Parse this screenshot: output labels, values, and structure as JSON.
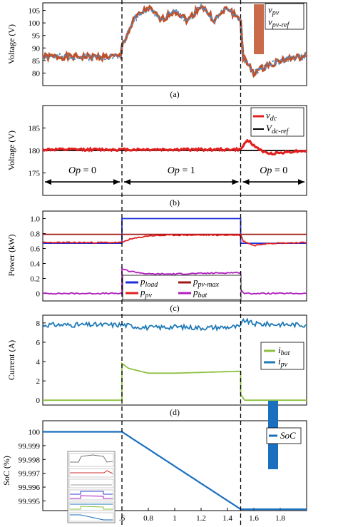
{
  "figure": {
    "shared_x_range": [
      1.3,
      2.0
    ],
    "vertical_markers_x": [
      0.6,
      1.5
    ]
  },
  "chart_data": [
    {
      "id": "a",
      "type": "line",
      "caption": "(a)",
      "ylabel": "Voltage (V)",
      "ylim": [
        75,
        108
      ],
      "yticks": [
        80,
        85,
        90,
        95,
        100,
        105
      ],
      "legend": [
        "v_pv",
        "v_pv-ref"
      ],
      "legend_text": {
        "v": "v",
        "pv": "pv",
        "pvref": "pv-ref"
      },
      "series": [
        {
          "name": "v_pv-ref",
          "color": "#c0502a",
          "x": [
            0.0,
            0.59,
            0.6,
            0.7,
            0.8,
            0.9,
            1.0,
            1.1,
            1.2,
            1.3,
            1.4,
            1.5,
            1.52,
            1.6,
            1.7,
            1.8,
            1.9,
            2.0
          ],
          "values": [
            86.5,
            86.5,
            91,
            102,
            106,
            101,
            105,
            101,
            107,
            101,
            106,
            101,
            86,
            80,
            83,
            85,
            86,
            86.5
          ]
        },
        {
          "name": "v_pv",
          "color": "#4a90c8",
          "x": [
            0.0,
            0.59,
            0.6,
            0.7,
            0.8,
            0.9,
            1.0,
            1.1,
            1.2,
            1.3,
            1.4,
            1.5,
            1.52,
            1.6,
            1.7,
            1.8,
            1.9,
            2.0
          ],
          "values": [
            86.5,
            86.5,
            91,
            102,
            106,
            101,
            105,
            101,
            107,
            101,
            106,
            101,
            86,
            80,
            83,
            85,
            86,
            86.5
          ]
        }
      ]
    },
    {
      "id": "b",
      "type": "line",
      "caption": "(b)",
      "ylabel": "Voltage (V)",
      "ylim": [
        170,
        190
      ],
      "yticks": [
        175,
        180,
        185
      ],
      "legend": [
        "v_dc",
        "V_dc-ref"
      ],
      "legend_text": {
        "v": "v",
        "V": "V",
        "dc": "dc",
        "dcref": "dc-ref"
      },
      "annotations": [
        {
          "text_pre": "Op",
          "text_post": " = 0",
          "x_from": 0.0,
          "x_to": 0.6
        },
        {
          "text_pre": "Op",
          "text_post": " = 1",
          "x_from": 0.6,
          "x_to": 1.5
        },
        {
          "text_pre": "Op",
          "text_post": " = 0",
          "x_from": 1.5,
          "x_to": 2.0
        }
      ],
      "series": [
        {
          "name": "V_dc-ref",
          "color": "#000000",
          "x": [
            0.0,
            2.0
          ],
          "values": [
            180,
            180
          ]
        },
        {
          "name": "v_dc",
          "color": "#e02020",
          "x": [
            0.0,
            1.5,
            1.52,
            1.55,
            1.6,
            1.7,
            1.8,
            1.9,
            2.0
          ],
          "values": [
            180.2,
            180.2,
            181,
            182.5,
            181,
            179.3,
            179.5,
            179.8,
            180
          ]
        }
      ]
    },
    {
      "id": "c",
      "type": "line",
      "caption": "(c)",
      "ylabel": "Power (kW)",
      "ylim": [
        -0.1,
        1.1
      ],
      "yticks": [
        0,
        0.2,
        0.4,
        0.6,
        0.8,
        1.0
      ],
      "ytick_labels": [
        "0",
        "0.2",
        "0.4",
        "0.6",
        "0.8",
        "1.0"
      ],
      "legend": [
        "p_load",
        "p_pv-max",
        "p_pv",
        "p_bat"
      ],
      "legend_text": {
        "p": "p",
        "load": "load",
        "pvmax": "pv-max",
        "pv": "pv",
        "bat": "bat"
      },
      "series": [
        {
          "name": "p_load",
          "color": "#1f2ed8",
          "x": [
            0.0,
            0.6,
            0.6,
            1.5,
            1.5,
            2.0
          ],
          "values": [
            0.67,
            0.67,
            1.0,
            1.0,
            0.67,
            0.67
          ]
        },
        {
          "name": "p_pv-max",
          "color": "#a01818",
          "x": [
            0.0,
            2.0
          ],
          "values": [
            0.79,
            0.79
          ]
        },
        {
          "name": "p_pv",
          "color": "#e02020",
          "x": [
            0.0,
            0.6,
            0.65,
            0.8,
            1.0,
            1.5,
            1.52,
            1.6,
            1.7,
            2.0
          ],
          "values": [
            0.68,
            0.68,
            0.72,
            0.77,
            0.78,
            0.78,
            0.7,
            0.64,
            0.67,
            0.68
          ]
        },
        {
          "name": "p_bat",
          "color": "#b020c0",
          "x": [
            0.0,
            0.6,
            0.6,
            0.65,
            0.8,
            1.0,
            1.5,
            1.5,
            1.53,
            2.0
          ],
          "values": [
            0.0,
            0.0,
            0.33,
            0.3,
            0.26,
            0.26,
            0.28,
            0.05,
            0.0,
            0.0
          ]
        }
      ]
    },
    {
      "id": "d",
      "type": "line",
      "caption": "(d)",
      "ylabel": "Current (A)",
      "ylim": [
        -0.5,
        8.8
      ],
      "yticks": [
        0,
        2,
        4,
        6,
        8
      ],
      "legend": [
        "i_bat",
        "i_pv"
      ],
      "legend_text": {
        "i": "i",
        "bat": "bat",
        "pv": "pv"
      },
      "series": [
        {
          "name": "i_pv",
          "color": "#1f7ab8",
          "x": [
            0.0,
            0.6,
            0.8,
            1.0,
            1.2,
            1.5,
            1.52,
            1.6,
            2.0
          ],
          "values": [
            7.8,
            7.8,
            7.5,
            7.6,
            7.5,
            7.6,
            8.3,
            7.9,
            7.8
          ]
        },
        {
          "name": "i_bat",
          "color": "#8dc040",
          "x": [
            0.0,
            0.6,
            0.6,
            0.65,
            0.8,
            1.0,
            1.5,
            1.5,
            1.53,
            2.0
          ],
          "values": [
            0.0,
            0.0,
            3.8,
            3.3,
            2.8,
            2.8,
            3.0,
            0.6,
            0.0,
            0.0
          ]
        }
      ]
    },
    {
      "id": "e",
      "type": "line",
      "ylabel": "SoC (%)",
      "ylim": [
        99.9943,
        100.0008
      ],
      "yticks": [
        99.995,
        99.996,
        99.997,
        99.998,
        99.999,
        100
      ],
      "ytick_labels": [
        "99.995",
        "99.996",
        "99.997",
        "99.998",
        "99.999",
        "100"
      ],
      "xticks": [
        0.6,
        0.8,
        1.0,
        1.2,
        1.4,
        1.6,
        1.8
      ],
      "xtick_labels": [
        ".6",
        "0.8",
        "1",
        "1.2",
        "1.4",
        "1.6",
        "1.8"
      ],
      "legend": [
        "SoC"
      ],
      "series": [
        {
          "name": "SoC",
          "color": "#1a6fbf",
          "x": [
            0.0,
            0.6,
            1.5,
            2.0
          ],
          "values": [
            100.0,
            100.0,
            99.9944,
            99.9944
          ]
        }
      ]
    }
  ]
}
